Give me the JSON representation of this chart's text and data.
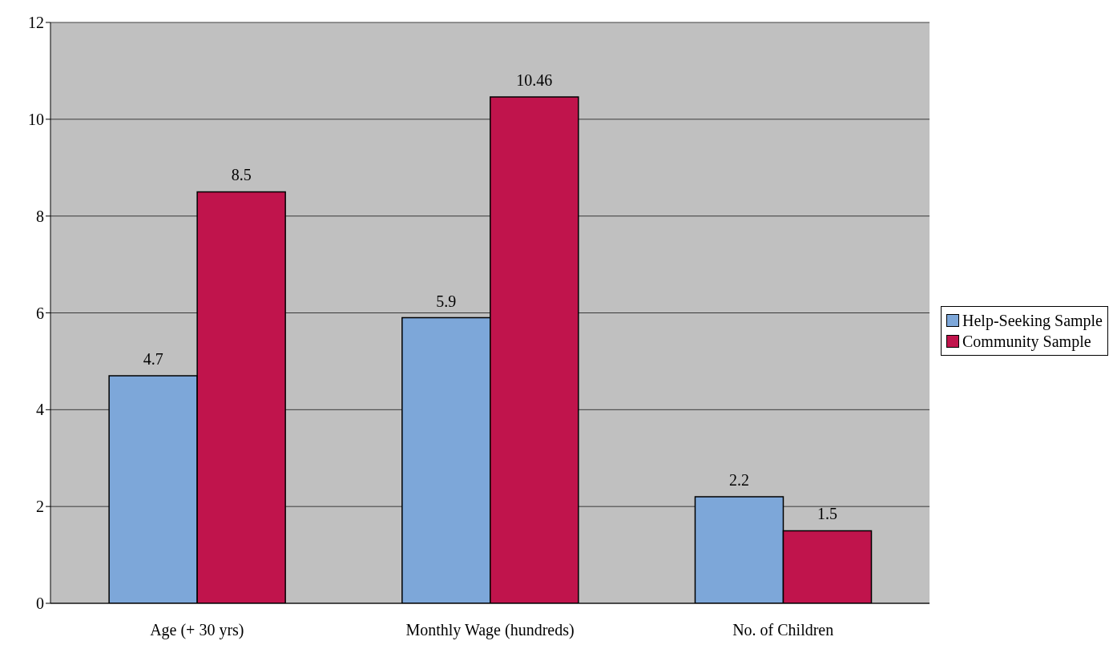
{
  "chart_data": {
    "type": "bar",
    "categories": [
      "Age (+ 30 yrs)",
      "Monthly Wage (hundreds)",
      "No. of Children"
    ],
    "series": [
      {
        "name": "Help-Seeking Sample",
        "color": "#7da7d9",
        "values": [
          4.7,
          5.9,
          2.2
        ]
      },
      {
        "name": "Community Sample",
        "color": "#c0144c",
        "values": [
          8.5,
          10.46,
          1.5
        ]
      }
    ],
    "ylim": [
      0,
      12
    ],
    "yticks": [
      0,
      2,
      4,
      6,
      8,
      10,
      12
    ],
    "grid": "y",
    "legend": "right",
    "data_labels": true
  }
}
